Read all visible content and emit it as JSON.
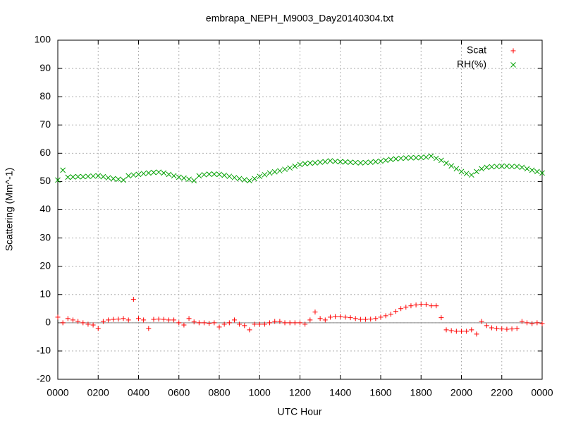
{
  "chart_data": {
    "type": "scatter",
    "title": "embrapa_NEPH_M9003_Day20140304.txt",
    "x_label": "UTC Hour",
    "y_label": "Scattering (Mm^-1)",
    "xlim": [
      0,
      24
    ],
    "xticks": [
      {
        "value": 0,
        "label": "0000"
      },
      {
        "value": 2,
        "label": "0200"
      },
      {
        "value": 4,
        "label": "0400"
      },
      {
        "value": 6,
        "label": "0600"
      },
      {
        "value": 8,
        "label": "0800"
      },
      {
        "value": 10,
        "label": "1000"
      },
      {
        "value": 12,
        "label": "1200"
      },
      {
        "value": 14,
        "label": "1400"
      },
      {
        "value": 16,
        "label": "1600"
      },
      {
        "value": 18,
        "label": "1800"
      },
      {
        "value": 20,
        "label": "2000"
      },
      {
        "value": 22,
        "label": "2200"
      },
      {
        "value": 24,
        "label": "0000"
      }
    ],
    "ylim": [
      -20,
      100
    ],
    "yticks": [
      -20,
      -10,
      0,
      10,
      20,
      30,
      40,
      50,
      60,
      70,
      80,
      90,
      100
    ],
    "grid": true,
    "zeroaxis": true,
    "legend": "top-right",
    "x": [
      0,
      0.25,
      0.5,
      0.75,
      1,
      1.25,
      1.5,
      1.75,
      2,
      2.25,
      2.5,
      2.75,
      3,
      3.25,
      3.5,
      3.75,
      4,
      4.25,
      4.5,
      4.75,
      5,
      5.25,
      5.5,
      5.75,
      6,
      6.25,
      6.5,
      6.75,
      7,
      7.25,
      7.5,
      7.75,
      8,
      8.25,
      8.5,
      8.75,
      9,
      9.25,
      9.5,
      9.75,
      10,
      10.25,
      10.5,
      10.75,
      11,
      11.25,
      11.5,
      11.75,
      12,
      12.25,
      12.5,
      12.75,
      13,
      13.25,
      13.5,
      13.75,
      14,
      14.25,
      14.5,
      14.75,
      15,
      15.25,
      15.5,
      15.75,
      16,
      16.25,
      16.5,
      16.75,
      17,
      17.25,
      17.5,
      17.75,
      18,
      18.25,
      18.5,
      18.75,
      19,
      19.25,
      19.5,
      19.75,
      20,
      20.25,
      20.5,
      20.75,
      21,
      21.25,
      21.5,
      21.75,
      22,
      22.25,
      22.5,
      22.75,
      23,
      23.25,
      23.5,
      23.75,
      24
    ],
    "series": [
      {
        "name": "Scat",
        "color": "#ff0000",
        "marker": "plus",
        "values": [
          2,
          0,
          1.5,
          1,
          0.5,
          0,
          -0.5,
          -0.8,
          -2,
          0.5,
          1,
          1.2,
          1.3,
          1.5,
          1,
          8.3,
          1.5,
          1,
          -2,
          1.2,
          1.3,
          1.2,
          1,
          1,
          0,
          -0.8,
          1.5,
          0.3,
          0,
          0,
          -0.2,
          0,
          -1.5,
          -0.5,
          0,
          1,
          -0.5,
          -1,
          -2.5,
          -0.5,
          -0.5,
          -0.5,
          0,
          0.5,
          0.5,
          0,
          0,
          0,
          0,
          -0.5,
          1,
          3.8,
          1.5,
          1,
          2,
          2.2,
          2.2,
          2,
          1.8,
          1.5,
          1.2,
          1.2,
          1.3,
          1.5,
          2,
          2.5,
          3,
          4,
          5,
          5.5,
          6,
          6.3,
          6.5,
          6.5,
          6,
          6,
          1.8,
          -2.5,
          -2.8,
          -3,
          -3,
          -3,
          -2.5,
          -4,
          0.5,
          -1,
          -1.8,
          -2,
          -2.2,
          -2.3,
          -2.2,
          -2,
          0.5,
          0,
          -0.3,
          0,
          -0.3
        ]
      },
      {
        "name": "RH(%)",
        "color": "#00a000",
        "marker": "cross",
        "values": [
          50.5,
          54,
          51.5,
          51.6,
          51.7,
          51.7,
          51.8,
          51.9,
          52,
          51.7,
          51.3,
          51,
          50.8,
          50.5,
          52,
          52.3,
          52.5,
          52.8,
          53,
          53.2,
          53.3,
          53,
          52.5,
          52,
          51.5,
          51.2,
          50.8,
          50.3,
          52,
          52.4,
          52.6,
          52.6,
          52.5,
          52.2,
          51.8,
          51.4,
          51,
          50.6,
          50.3,
          51,
          51.8,
          52.4,
          53,
          53.4,
          53.8,
          54.3,
          54.8,
          55.4,
          56,
          56.3,
          56.5,
          56.6,
          56.8,
          57,
          57.3,
          57.1,
          57,
          56.9,
          56.8,
          56.7,
          56.6,
          56.7,
          56.8,
          57,
          57.2,
          57.5,
          57.8,
          58,
          58.2,
          58.3,
          58.4,
          58.4,
          58.5,
          58.6,
          59,
          58.2,
          57.5,
          56.5,
          55.5,
          54.5,
          53.5,
          52.8,
          52.3,
          53.5,
          54.5,
          55,
          55.2,
          55.3,
          55.4,
          55.4,
          55.3,
          55.3,
          55,
          54.5,
          54,
          53.5,
          53
        ]
      }
    ]
  }
}
